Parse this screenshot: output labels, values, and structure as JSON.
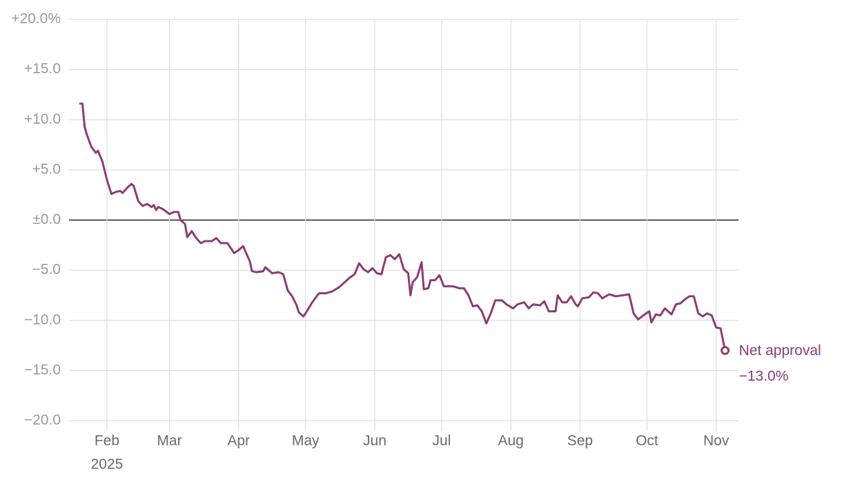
{
  "chart_data": {
    "type": "line",
    "x": [
      "2025-01-20",
      "2025-01-21",
      "2025-01-22",
      "2025-01-23",
      "2025-01-25",
      "2025-01-27",
      "2025-01-28",
      "2025-01-30",
      "2025-02-01",
      "2025-02-03",
      "2025-02-05",
      "2025-02-07",
      "2025-02-08",
      "2025-02-10",
      "2025-02-12",
      "2025-02-13",
      "2025-02-15",
      "2025-02-17",
      "2025-02-19",
      "2025-02-21",
      "2025-02-22",
      "2025-02-23",
      "2025-02-24",
      "2025-02-26",
      "2025-03-01",
      "2025-03-03",
      "2025-03-05",
      "2025-03-06",
      "2025-03-08",
      "2025-03-09",
      "2025-03-11",
      "2025-03-13",
      "2025-03-15",
      "2025-03-17",
      "2025-03-20",
      "2025-03-22",
      "2025-03-24",
      "2025-03-27",
      "2025-03-30",
      "2025-04-01",
      "2025-04-03",
      "2025-04-06",
      "2025-04-07",
      "2025-04-09",
      "2025-04-12",
      "2025-04-13",
      "2025-04-16",
      "2025-04-19",
      "2025-04-21",
      "2025-04-23",
      "2025-04-25",
      "2025-04-27",
      "2025-04-28",
      "2025-04-30",
      "2025-05-01",
      "2025-05-04",
      "2025-05-07",
      "2025-05-10",
      "2025-05-13",
      "2025-05-16",
      "2025-05-19",
      "2025-05-21",
      "2025-05-23",
      "2025-05-25",
      "2025-05-27",
      "2025-05-29",
      "2025-05-31",
      "2025-06-02",
      "2025-06-04",
      "2025-06-06",
      "2025-06-08",
      "2025-06-10",
      "2025-06-12",
      "2025-06-14",
      "2025-06-16",
      "2025-06-17",
      "2025-06-18",
      "2025-06-20",
      "2025-06-22",
      "2025-06-23",
      "2025-06-25",
      "2025-06-26",
      "2025-06-28",
      "2025-06-30",
      "2025-07-02",
      "2025-07-06",
      "2025-07-09",
      "2025-07-11",
      "2025-07-13",
      "2025-07-15",
      "2025-07-17",
      "2025-07-19",
      "2025-07-21",
      "2025-07-23",
      "2025-07-25",
      "2025-07-28",
      "2025-07-30",
      "2025-08-02",
      "2025-08-04",
      "2025-08-07",
      "2025-08-09",
      "2025-08-11",
      "2025-08-14",
      "2025-08-16",
      "2025-08-18",
      "2025-08-21",
      "2025-08-22",
      "2025-08-24",
      "2025-08-26",
      "2025-08-28",
      "2025-08-30",
      "2025-08-31",
      "2025-09-02",
      "2025-09-05",
      "2025-09-07",
      "2025-09-09",
      "2025-09-11",
      "2025-09-14",
      "2025-09-17",
      "2025-09-20",
      "2025-09-23",
      "2025-09-25",
      "2025-09-27",
      "2025-09-30",
      "2025-10-02",
      "2025-10-03",
      "2025-10-05",
      "2025-10-07",
      "2025-10-09",
      "2025-10-12",
      "2025-10-14",
      "2025-10-16",
      "2025-10-18",
      "2025-10-20",
      "2025-10-22",
      "2025-10-24",
      "2025-10-26",
      "2025-10-28",
      "2025-10-30",
      "2025-11-01",
      "2025-11-03",
      "2025-11-05"
    ],
    "series": [
      {
        "name": "Net approval",
        "color": "#8a3c77",
        "values": [
          11.6,
          11.6,
          9.3,
          8.5,
          7.3,
          6.7,
          6.9,
          5.8,
          4.0,
          2.6,
          2.8,
          2.9,
          2.7,
          3.2,
          3.6,
          3.4,
          1.9,
          1.4,
          1.6,
          1.3,
          1.5,
          1.0,
          1.3,
          1.1,
          0.6,
          0.8,
          0.8,
          0.0,
          -0.4,
          -1.7,
          -1.1,
          -1.8,
          -2.3,
          -2.1,
          -2.1,
          -1.8,
          -2.3,
          -2.3,
          -3.3,
          -3.0,
          -2.6,
          -4.1,
          -5.1,
          -5.2,
          -5.1,
          -4.7,
          -5.3,
          -5.2,
          -5.4,
          -7.0,
          -7.6,
          -8.5,
          -9.2,
          -9.6,
          -9.3,
          -8.2,
          -7.3,
          -7.3,
          -7.1,
          -6.7,
          -6.1,
          -5.7,
          -5.4,
          -4.3,
          -4.9,
          -5.2,
          -4.8,
          -5.3,
          -5.4,
          -3.7,
          -3.5,
          -3.9,
          -3.4,
          -4.9,
          -5.3,
          -7.5,
          -6.2,
          -5.7,
          -4.2,
          -6.9,
          -6.8,
          -6.0,
          -6.0,
          -5.5,
          -6.6,
          -6.6,
          -6.8,
          -6.8,
          -7.5,
          -8.6,
          -8.5,
          -9.1,
          -10.3,
          -9.3,
          -8.0,
          -8.0,
          -8.4,
          -8.8,
          -8.4,
          -8.2,
          -8.8,
          -8.4,
          -8.5,
          -8.1,
          -9.1,
          -9.1,
          -7.5,
          -8.2,
          -8.2,
          -7.6,
          -8.4,
          -8.6,
          -7.8,
          -7.7,
          -7.2,
          -7.3,
          -7.8,
          -7.4,
          -7.6,
          -7.5,
          -7.4,
          -9.3,
          -9.9,
          -9.4,
          -9.1,
          -10.2,
          -9.4,
          -9.5,
          -8.8,
          -9.4,
          -8.4,
          -8.3,
          -7.9,
          -7.6,
          -7.6,
          -9.3,
          -9.6,
          -9.3,
          -9.5,
          -10.7,
          -10.8,
          -13.0
        ],
        "value_labels": [
          null,
          null,
          null,
          null,
          null,
          null,
          null,
          null,
          null,
          null,
          null,
          null,
          null,
          null,
          null,
          null,
          null,
          null,
          null,
          null,
          null,
          null,
          null,
          null,
          null,
          null,
          null,
          null,
          null,
          null,
          null,
          null,
          null,
          null,
          null,
          null,
          null,
          null,
          null,
          null,
          null,
          null,
          null,
          null,
          null,
          null,
          null,
          null,
          null,
          null,
          null,
          null,
          null,
          null,
          null,
          null,
          null,
          null,
          null,
          null,
          null,
          null,
          null,
          null,
          null,
          null,
          null,
          null,
          null,
          null,
          null,
          null,
          null,
          null,
          null,
          null,
          null,
          null,
          null,
          null,
          null,
          null,
          null,
          null,
          null,
          null,
          null,
          null,
          null,
          null,
          null,
          null,
          null,
          null,
          null,
          null,
          null,
          null,
          null,
          null,
          null,
          null,
          null,
          null,
          null,
          null,
          null,
          null,
          null,
          null,
          null,
          null,
          null,
          null,
          null,
          null,
          null,
          null,
          null,
          null,
          null,
          null,
          null,
          null,
          null,
          null,
          null,
          null,
          null,
          null,
          null,
          null,
          null,
          null,
          null,
          null,
          null,
          null,
          null,
          null,
          null,
          "−13.0%"
        ]
      }
    ],
    "xlim": [
      "2025-01-15",
      "2025-11-11"
    ],
    "xticks": [
      {
        "value": "2025-02",
        "label": "Feb",
        "year": "2025"
      },
      {
        "value": "2025-03",
        "label": "Mar"
      },
      {
        "value": "2025-04",
        "label": "Apr"
      },
      {
        "value": "2025-05",
        "label": "May"
      },
      {
        "value": "2025-06",
        "label": "Jun"
      },
      {
        "value": "2025-07",
        "label": "Jul"
      },
      {
        "value": "2025-08",
        "label": "Aug"
      },
      {
        "value": "2025-09",
        "label": "Sep"
      },
      {
        "value": "2025-10",
        "label": "Oct"
      },
      {
        "value": "2025-11",
        "label": "Nov"
      }
    ],
    "ylim": [
      -20,
      20
    ],
    "yticks": [
      {
        "value": 20,
        "label": "+20.0%"
      },
      {
        "value": 15,
        "label": "+15.0"
      },
      {
        "value": 10,
        "label": "+10.0"
      },
      {
        "value": 5,
        "label": "+5.0"
      },
      {
        "value": 0,
        "label": "±0.0"
      },
      {
        "value": -5,
        "label": "−5.0"
      },
      {
        "value": -10,
        "label": "−10.0"
      },
      {
        "value": -15,
        "label": "−15.0"
      },
      {
        "value": -20,
        "label": "−20.0"
      }
    ],
    "grid": true,
    "zero_line": true
  }
}
